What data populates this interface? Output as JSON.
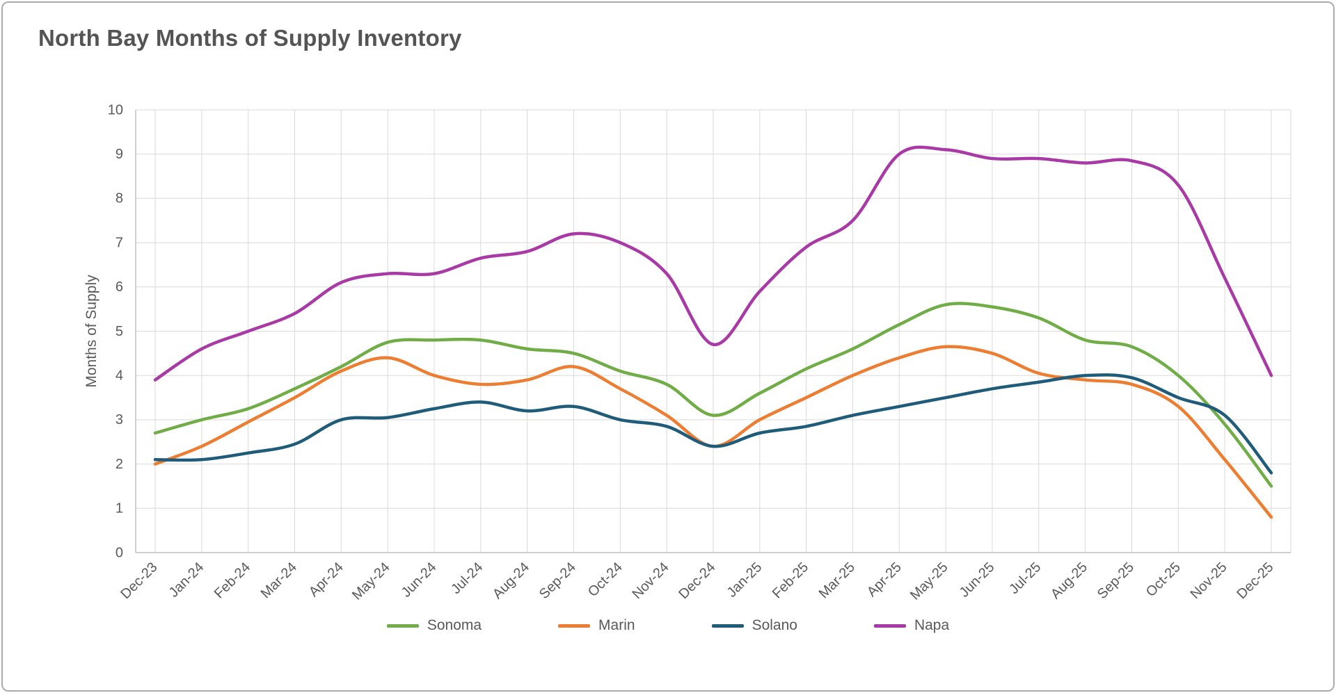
{
  "page": {
    "title": "North Bay Months of Supply Inventory"
  },
  "chart_data": {
    "type": "line",
    "title": "North Bay Months of Supply Inventory",
    "xlabel": "",
    "ylabel": "Months of Supply",
    "ylim": [
      0,
      10
    ],
    "y_ticks": [
      0,
      1,
      2,
      3,
      4,
      5,
      6,
      7,
      8,
      9,
      10
    ],
    "grid": true,
    "line_style": "smooth",
    "legend_position": "bottom",
    "categories": [
      "Dec-23",
      "Jan-24",
      "Feb-24",
      "Mar-24",
      "Apr-24",
      "May-24",
      "Jun-24",
      "Jul-24",
      "Aug-24",
      "Sep-24",
      "Oct-24",
      "Nov-24",
      "Dec-24",
      "Jan-25",
      "Feb-25",
      "Mar-25",
      "Apr-25",
      "May-25",
      "Jun-25",
      "Jul-25",
      "Aug-25",
      "Sep-25",
      "Oct-25",
      "Nov-25",
      "Dec-25"
    ],
    "series": [
      {
        "name": "Sonoma",
        "color": "#70AD47",
        "values": [
          2.7,
          3.0,
          3.25,
          3.7,
          4.2,
          4.75,
          4.8,
          4.8,
          4.6,
          4.5,
          4.1,
          3.8,
          3.1,
          3.6,
          4.15,
          4.6,
          5.15,
          5.6,
          5.55,
          5.3,
          4.8,
          4.65,
          4.0,
          2.9,
          1.5
        ]
      },
      {
        "name": "Marin",
        "color": "#ED7D31",
        "values": [
          2.0,
          2.4,
          2.95,
          3.5,
          4.1,
          4.4,
          4.0,
          3.8,
          3.9,
          4.2,
          3.7,
          3.1,
          2.4,
          3.0,
          3.5,
          4.0,
          4.4,
          4.65,
          4.5,
          4.05,
          3.9,
          3.8,
          3.3,
          2.1,
          0.8
        ]
      },
      {
        "name": "Solano",
        "color": "#1F5C7A",
        "values": [
          2.1,
          2.1,
          2.25,
          2.45,
          3.0,
          3.05,
          3.25,
          3.4,
          3.2,
          3.3,
          3.0,
          2.85,
          2.4,
          2.7,
          2.85,
          3.1,
          3.3,
          3.5,
          3.7,
          3.85,
          4.0,
          3.95,
          3.5,
          3.1,
          1.8
        ]
      },
      {
        "name": "Napa",
        "color": "#A93AA5",
        "values": [
          3.9,
          4.6,
          5.0,
          5.4,
          6.1,
          6.3,
          6.3,
          6.65,
          6.8,
          7.2,
          7.0,
          6.3,
          4.7,
          5.9,
          6.9,
          7.5,
          9.0,
          9.1,
          8.9,
          8.9,
          8.8,
          8.85,
          8.3,
          6.2,
          4.0
        ]
      }
    ]
  }
}
